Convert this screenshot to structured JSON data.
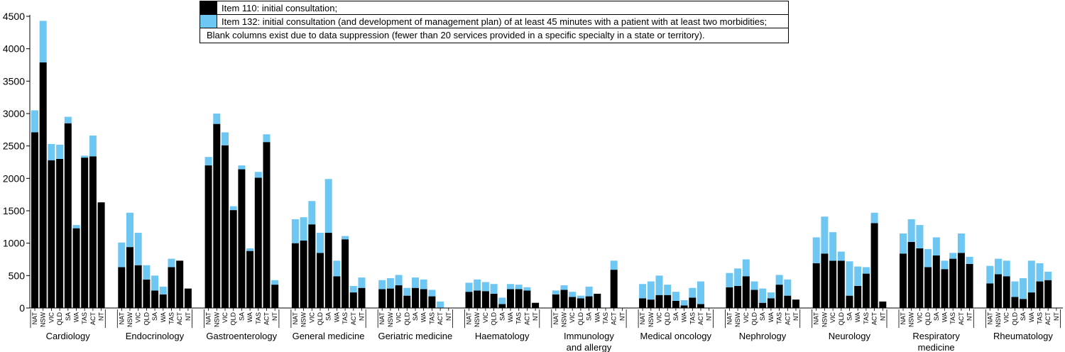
{
  "chart_data": {
    "type": "bar",
    "stacked": true,
    "ylim": [
      0,
      4500
    ],
    "yticks": [
      0,
      500,
      1000,
      1500,
      2000,
      2500,
      3000,
      3500,
      4000,
      4500
    ],
    "grid": false,
    "legend_position": "top-center",
    "legend": [
      {
        "key": "item110",
        "label": "Item 110: initial consultation;",
        "color": "#000000"
      },
      {
        "key": "item132",
        "label": "Item 132: initial consultation (and development of management plan) of at least 45 minutes with a patient with at least two morbidities;",
        "color": "#6ec6f2"
      }
    ],
    "note": "Blank columns exist due to data suppression (fewer than 20 services provided in a specific specialty in a state or territory).",
    "states": [
      "NAT",
      "NSW",
      "VIC",
      "QLD",
      "SA",
      "WA",
      "TAS",
      "ACT",
      "NT"
    ],
    "groups": [
      {
        "name": "Cardiology",
        "item110": [
          2710,
          3790,
          2280,
          2300,
          2850,
          1230,
          2320,
          2340,
          1630
        ],
        "item132": [
          340,
          640,
          250,
          220,
          100,
          50,
          30,
          320,
          0
        ]
      },
      {
        "name": "Endocrinology",
        "item110": [
          630,
          940,
          660,
          440,
          270,
          210,
          630,
          730,
          300
        ],
        "item132": [
          380,
          530,
          500,
          220,
          230,
          120,
          130,
          0,
          0
        ]
      },
      {
        "name": "Gastroenterology",
        "item110": [
          2200,
          2840,
          2510,
          1510,
          2140,
          880,
          2010,
          2560,
          360
        ],
        "item132": [
          130,
          160,
          200,
          60,
          60,
          40,
          90,
          120,
          70
        ]
      },
      {
        "name": "General medicine",
        "item110": [
          1000,
          1040,
          1290,
          850,
          1160,
          490,
          1060,
          240,
          310
        ],
        "item132": [
          370,
          360,
          360,
          310,
          830,
          240,
          50,
          100,
          160
        ]
      },
      {
        "name": "Geriatric medicine",
        "item110": [
          290,
          300,
          350,
          190,
          310,
          290,
          180,
          0,
          0
        ],
        "item132": [
          140,
          160,
          160,
          120,
          160,
          150,
          100,
          100,
          0
        ]
      },
      {
        "name": "Haematology",
        "item110": [
          250,
          270,
          260,
          220,
          60,
          290,
          290,
          270,
          80
        ],
        "item132": [
          140,
          170,
          140,
          150,
          100,
          80,
          70,
          50,
          0
        ]
      },
      {
        "name": "Immunology\nand allergy",
        "item110": [
          210,
          280,
          170,
          150,
          180,
          220,
          0,
          590,
          0
        ],
        "item132": [
          60,
          70,
          80,
          40,
          150,
          0,
          0,
          140,
          0
        ]
      },
      {
        "name": "Medical oncology",
        "item110": [
          150,
          130,
          200,
          200,
          110,
          40,
          160,
          60,
          0
        ],
        "item132": [
          220,
          280,
          300,
          160,
          140,
          80,
          150,
          350,
          0
        ]
      },
      {
        "name": "Nephrology",
        "item110": [
          320,
          340,
          490,
          280,
          80,
          150,
          360,
          190,
          130
        ],
        "item132": [
          220,
          270,
          260,
          130,
          220,
          90,
          150,
          250,
          0
        ]
      },
      {
        "name": "Neurology",
        "item110": [
          690,
          840,
          730,
          730,
          190,
          340,
          530,
          1310,
          100
        ],
        "item132": [
          400,
          570,
          440,
          140,
          530,
          300,
          100,
          160,
          0
        ]
      },
      {
        "name": "Respiratory\nmedicine",
        "item110": [
          840,
          1020,
          920,
          630,
          810,
          600,
          760,
          850,
          680
        ],
        "item132": [
          310,
          350,
          360,
          280,
          280,
          130,
          90,
          300,
          110
        ]
      },
      {
        "name": "Rheumatology",
        "item110": [
          380,
          520,
          490,
          170,
          140,
          240,
          410,
          430,
          0
        ],
        "item132": [
          270,
          240,
          240,
          240,
          320,
          490,
          280,
          130,
          0
        ]
      }
    ]
  }
}
